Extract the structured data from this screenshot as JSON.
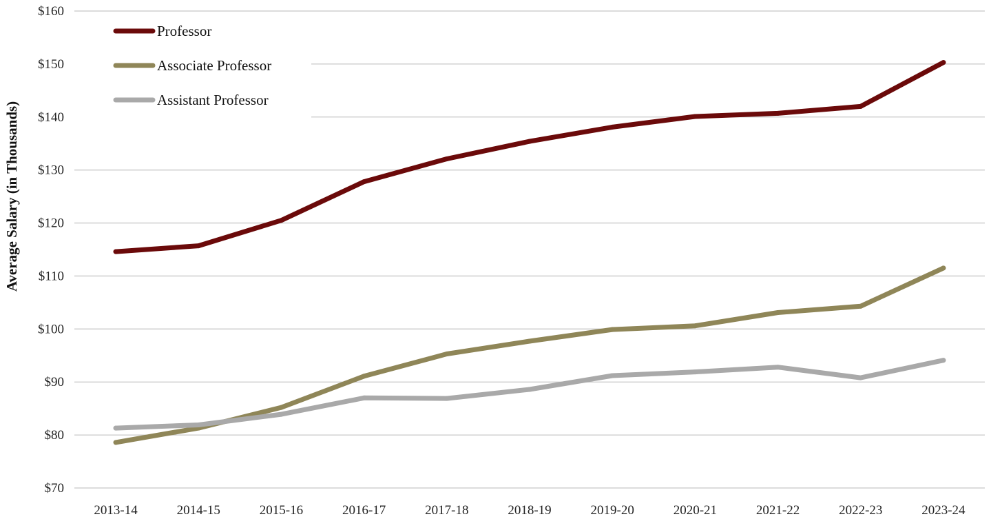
{
  "chart_data": {
    "type": "line",
    "title": "",
    "xlabel": "",
    "ylabel": "Average Salary (in Thousands)",
    "categories": [
      "2013-14",
      "2014-15",
      "2015-16",
      "2016-17",
      "2017-18",
      "2018-19",
      "2019-20",
      "2020-21",
      "2021-22",
      "2022-23",
      "2023-24"
    ],
    "ylim": [
      70,
      160
    ],
    "yticks": [
      70,
      80,
      90,
      100,
      110,
      120,
      130,
      140,
      150,
      160
    ],
    "ytick_labels": [
      "$70",
      "$80",
      "$90",
      "$100",
      "$110",
      "$120",
      "$130",
      "$140",
      "$150",
      "$160"
    ],
    "grid": true,
    "legend_position": "top-left",
    "series": [
      {
        "name": "Professor",
        "color": "#6b0a0a",
        "values": [
          114.6,
          115.7,
          120.5,
          127.8,
          132.1,
          135.4,
          138.1,
          140.1,
          140.7,
          142.0,
          150.3
        ]
      },
      {
        "name": "Associate Professor",
        "color": "#8f8658",
        "values": [
          78.6,
          81.3,
          85.2,
          91.1,
          95.3,
          97.7,
          99.9,
          100.6,
          103.1,
          104.3,
          111.5
        ]
      },
      {
        "name": "Assistant Professor",
        "color": "#a9a9a9",
        "values": [
          81.3,
          81.9,
          83.9,
          87.0,
          86.9,
          88.6,
          91.2,
          91.9,
          92.8,
          90.8,
          94.1
        ]
      }
    ]
  }
}
